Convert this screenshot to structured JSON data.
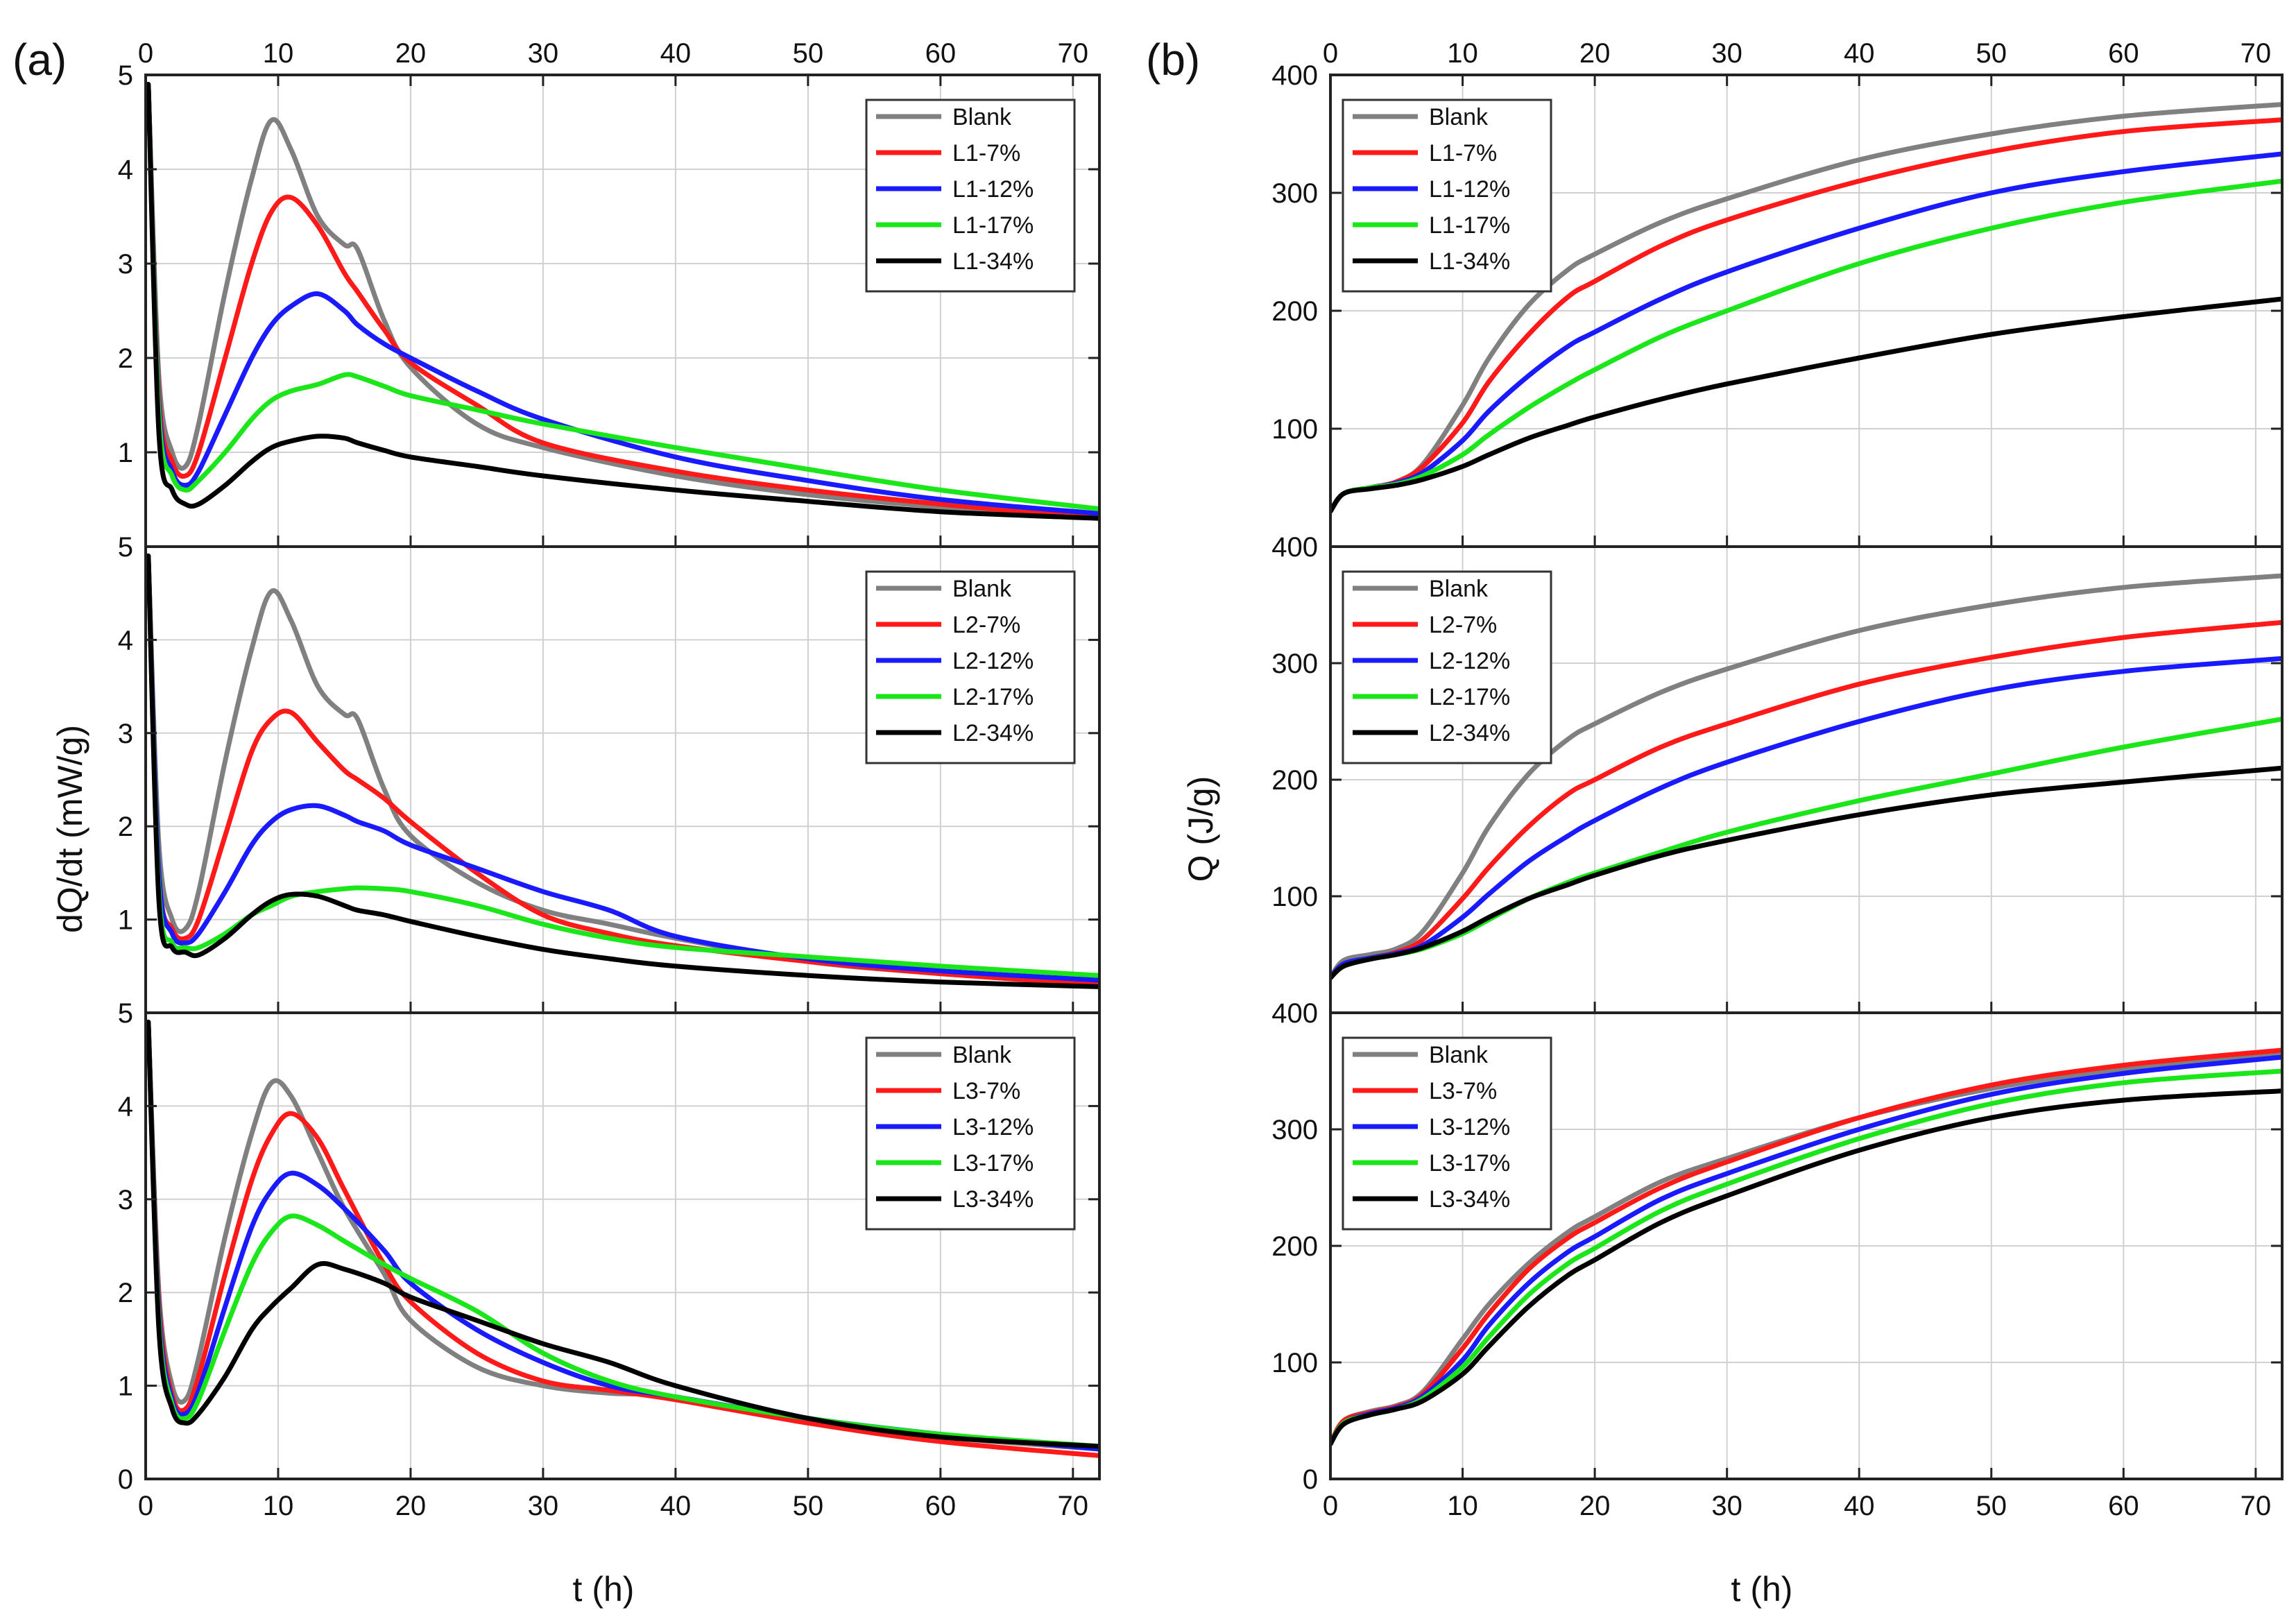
{
  "figure": {
    "panel_a_label": "(a)",
    "panel_b_label": "(b)"
  },
  "colors": {
    "Blank": "#808080",
    "7%": "#ff1a1a",
    "12%": "#1a1aff",
    "17%": "#1ae61a",
    "34%": "#000000"
  },
  "chart_data": [
    {
      "id": "a1",
      "type": "line",
      "title": "",
      "xlabel": "t (h)",
      "ylabel": "dQ/dt (mW/g)",
      "xlim": [
        0,
        72
      ],
      "ylim": [
        0,
        5
      ],
      "grid": true,
      "legend": "top-right",
      "xticks": [
        0,
        10,
        20,
        30,
        40,
        50,
        60,
        70
      ],
      "yticks": [
        1,
        2,
        3,
        4,
        5
      ],
      "x": [
        0.2,
        1,
        2,
        3,
        4,
        6,
        8,
        9.5,
        11,
        13,
        15,
        16,
        18,
        20,
        25,
        30,
        40,
        50,
        60,
        72
      ],
      "series": [
        {
          "name": "Blank",
          "key": "Blank",
          "values": [
            4.9,
            1.8,
            1.0,
            0.85,
            1.3,
            2.7,
            3.9,
            4.52,
            4.2,
            3.5,
            3.2,
            3.15,
            2.4,
            1.9,
            1.3,
            1.05,
            0.75,
            0.55,
            0.42,
            0.3
          ]
        },
        {
          "name": "L1-7%",
          "key": "7%",
          "values": [
            4.9,
            1.6,
            0.9,
            0.75,
            1.0,
            2.0,
            3.0,
            3.55,
            3.7,
            3.4,
            2.9,
            2.7,
            2.3,
            1.95,
            1.5,
            1.1,
            0.8,
            0.6,
            0.45,
            0.3
          ]
        },
        {
          "name": "L1-12%",
          "key": "12%",
          "values": [
            4.9,
            1.5,
            0.8,
            0.65,
            0.8,
            1.4,
            2.0,
            2.35,
            2.55,
            2.68,
            2.5,
            2.35,
            2.15,
            2.0,
            1.65,
            1.35,
            0.95,
            0.7,
            0.5,
            0.35
          ]
        },
        {
          "name": "L1-17%",
          "key": "17%",
          "values": [
            4.9,
            1.4,
            0.75,
            0.6,
            0.7,
            1.0,
            1.35,
            1.55,
            1.65,
            1.72,
            1.82,
            1.8,
            1.7,
            1.6,
            1.45,
            1.3,
            1.05,
            0.82,
            0.6,
            0.4
          ]
        },
        {
          "name": "L1-34%",
          "key": "34%",
          "values": [
            4.9,
            1.2,
            0.6,
            0.45,
            0.45,
            0.65,
            0.9,
            1.05,
            1.12,
            1.17,
            1.15,
            1.1,
            1.02,
            0.95,
            0.85,
            0.75,
            0.6,
            0.48,
            0.37,
            0.3
          ]
        }
      ]
    },
    {
      "id": "a2",
      "type": "line",
      "title": "",
      "xlabel": "t (h)",
      "ylabel": "dQ/dt (mW/g)",
      "xlim": [
        0,
        72
      ],
      "ylim": [
        0,
        5
      ],
      "grid": true,
      "legend": "top-right",
      "xticks": [
        0,
        10,
        20,
        30,
        40,
        50,
        60,
        70
      ],
      "yticks": [
        1,
        2,
        3,
        4,
        5
      ],
      "x": [
        0.2,
        1,
        2,
        3,
        4,
        6,
        8,
        9.5,
        11,
        13,
        15,
        16,
        18,
        20,
        25,
        30,
        35,
        40,
        50,
        60,
        72
      ],
      "series": [
        {
          "name": "Blank",
          "key": "Blank",
          "values": [
            4.9,
            1.8,
            1.0,
            0.9,
            1.3,
            2.7,
            3.9,
            4.52,
            4.2,
            3.5,
            3.2,
            3.15,
            2.4,
            1.9,
            1.4,
            1.1,
            0.95,
            0.8,
            0.55,
            0.42,
            0.3
          ]
        },
        {
          "name": "L2-7%",
          "key": "7%",
          "values": [
            4.9,
            1.5,
            0.9,
            0.8,
            1.0,
            1.9,
            2.8,
            3.15,
            3.22,
            2.9,
            2.6,
            2.5,
            2.3,
            2.05,
            1.5,
            1.05,
            0.85,
            0.72,
            0.55,
            0.42,
            0.3
          ]
        },
        {
          "name": "L2-12%",
          "key": "12%",
          "values": [
            4.9,
            1.5,
            0.85,
            0.75,
            0.85,
            1.3,
            1.8,
            2.05,
            2.18,
            2.22,
            2.12,
            2.05,
            1.95,
            1.8,
            1.55,
            1.3,
            1.1,
            0.82,
            0.58,
            0.45,
            0.35
          ]
        },
        {
          "name": "L2-17%",
          "key": "17%",
          "values": [
            4.9,
            1.3,
            0.75,
            0.7,
            0.7,
            0.85,
            1.05,
            1.15,
            1.25,
            1.3,
            1.33,
            1.34,
            1.33,
            1.3,
            1.15,
            0.95,
            0.8,
            0.7,
            0.6,
            0.5,
            0.4
          ]
        },
        {
          "name": "L2-34%",
          "key": "34%",
          "values": [
            4.9,
            1.2,
            0.7,
            0.65,
            0.62,
            0.8,
            1.05,
            1.2,
            1.27,
            1.25,
            1.15,
            1.1,
            1.05,
            0.98,
            0.82,
            0.68,
            0.58,
            0.5,
            0.4,
            0.33,
            0.28
          ]
        }
      ]
    },
    {
      "id": "a3",
      "type": "line",
      "title": "",
      "xlabel": "t (h)",
      "ylabel": "dQ/dt (mW/g)",
      "xlim": [
        0,
        72
      ],
      "ylim": [
        0,
        5
      ],
      "grid": true,
      "legend": "top-right",
      "xticks": [
        0,
        10,
        20,
        30,
        40,
        50,
        60,
        70
      ],
      "yticks": [
        0,
        1,
        2,
        3,
        4,
        5
      ],
      "x": [
        0.2,
        1,
        2,
        3,
        4,
        6,
        8,
        9.5,
        11,
        13,
        15,
        18,
        20,
        25,
        30,
        35,
        40,
        50,
        60,
        72
      ],
      "series": [
        {
          "name": "Blank",
          "key": "Blank",
          "values": [
            4.9,
            2.0,
            1.0,
            0.85,
            1.3,
            2.6,
            3.7,
            4.25,
            4.1,
            3.5,
            2.9,
            2.2,
            1.7,
            1.2,
            1.0,
            0.92,
            0.88,
            0.62,
            0.45,
            0.32
          ]
        },
        {
          "name": "L3-7%",
          "key": "7%",
          "values": [
            4.9,
            1.9,
            0.9,
            0.75,
            1.1,
            2.2,
            3.2,
            3.7,
            3.92,
            3.65,
            3.1,
            2.3,
            1.9,
            1.35,
            1.05,
            0.95,
            0.85,
            0.6,
            0.4,
            0.25
          ]
        },
        {
          "name": "L3-12%",
          "key": "12%",
          "values": [
            4.9,
            1.8,
            0.85,
            0.7,
            0.95,
            1.85,
            2.7,
            3.1,
            3.28,
            3.15,
            2.9,
            2.45,
            2.1,
            1.6,
            1.25,
            1.0,
            0.88,
            0.65,
            0.48,
            0.32
          ]
        },
        {
          "name": "L3-17%",
          "key": "17%",
          "values": [
            4.9,
            1.7,
            0.8,
            0.65,
            0.85,
            1.6,
            2.3,
            2.65,
            2.82,
            2.72,
            2.55,
            2.3,
            2.15,
            1.8,
            1.35,
            1.05,
            0.88,
            0.65,
            0.48,
            0.35
          ]
        },
        {
          "name": "L3-34%",
          "key": "34%",
          "values": [
            4.9,
            1.6,
            0.75,
            0.6,
            0.7,
            1.1,
            1.6,
            1.85,
            2.05,
            2.3,
            2.25,
            2.1,
            1.95,
            1.7,
            1.45,
            1.25,
            1.0,
            0.65,
            0.45,
            0.35
          ]
        }
      ]
    },
    {
      "id": "b1",
      "type": "line",
      "title": "",
      "xlabel": "t (h)",
      "ylabel": "Q (J/g)",
      "xlim": [
        0,
        72
      ],
      "ylim": [
        0,
        400
      ],
      "grid": true,
      "legend": "top-left",
      "xticks": [
        0,
        10,
        20,
        30,
        40,
        50,
        60,
        70
      ],
      "yticks": [
        100,
        200,
        300,
        400
      ],
      "x": [
        0,
        1,
        3,
        5,
        7,
        10,
        12,
        15,
        18,
        20,
        25,
        30,
        40,
        50,
        60,
        72
      ],
      "series": [
        {
          "name": "Blank",
          "key": "Blank",
          "values": [
            30,
            45,
            50,
            55,
            70,
            120,
            160,
            205,
            235,
            248,
            275,
            295,
            328,
            350,
            365,
            375
          ]
        },
        {
          "name": "L1-7%",
          "key": "7%",
          "values": [
            30,
            45,
            50,
            55,
            68,
            105,
            140,
            180,
            212,
            225,
            255,
            277,
            310,
            335,
            352,
            362
          ]
        },
        {
          "name": "L1-12%",
          "key": "12%",
          "values": [
            30,
            45,
            50,
            54,
            63,
            90,
            115,
            145,
            170,
            182,
            210,
            233,
            270,
            300,
            318,
            333
          ]
        },
        {
          "name": "L1-17%",
          "key": "17%",
          "values": [
            30,
            45,
            50,
            53,
            60,
            78,
            95,
            118,
            138,
            150,
            178,
            200,
            240,
            270,
            292,
            310
          ]
        },
        {
          "name": "L1-34%",
          "key": "34%",
          "values": [
            30,
            45,
            49,
            52,
            57,
            68,
            78,
            92,
            103,
            110,
            125,
            138,
            160,
            180,
            195,
            210
          ]
        }
      ]
    },
    {
      "id": "b2",
      "type": "line",
      "title": "",
      "xlabel": "t (h)",
      "ylabel": "Q (J/g)",
      "xlim": [
        0,
        72
      ],
      "ylim": [
        0,
        400
      ],
      "grid": true,
      "legend": "top-left",
      "xticks": [
        0,
        10,
        20,
        30,
        40,
        50,
        60,
        70
      ],
      "yticks": [
        100,
        200,
        300,
        400
      ],
      "x": [
        0,
        1,
        3,
        5,
        7,
        10,
        12,
        15,
        18,
        20,
        25,
        30,
        40,
        50,
        60,
        72
      ],
      "series": [
        {
          "name": "Blank",
          "key": "Blank",
          "values": [
            30,
            45,
            50,
            55,
            70,
            120,
            160,
            205,
            235,
            248,
            275,
            295,
            328,
            350,
            365,
            375
          ]
        },
        {
          "name": "L2-7%",
          "key": "7%",
          "values": [
            30,
            42,
            47,
            52,
            63,
            98,
            125,
            160,
            188,
            200,
            228,
            248,
            282,
            305,
            322,
            335
          ]
        },
        {
          "name": "L2-12%",
          "key": "12%",
          "values": [
            30,
            42,
            47,
            51,
            58,
            82,
            102,
            130,
            152,
            165,
            193,
            215,
            250,
            277,
            293,
            304
          ]
        },
        {
          "name": "L2-17%",
          "key": "17%",
          "values": [
            30,
            40,
            46,
            50,
            55,
            68,
            80,
            98,
            112,
            120,
            138,
            155,
            182,
            205,
            228,
            252
          ]
        },
        {
          "name": "L2-34%",
          "key": "34%",
          "values": [
            30,
            40,
            46,
            50,
            56,
            70,
            82,
            98,
            110,
            118,
            135,
            148,
            170,
            187,
            198,
            210
          ]
        }
      ]
    },
    {
      "id": "b3",
      "type": "line",
      "title": "",
      "xlabel": "t (h)",
      "ylabel": "Q (J/g)",
      "xlim": [
        0,
        72
      ],
      "ylim": [
        0,
        400
      ],
      "grid": true,
      "legend": "top-left",
      "xticks": [
        0,
        10,
        20,
        30,
        40,
        50,
        60,
        70
      ],
      "yticks": [
        0,
        100,
        200,
        300,
        400
      ],
      "x": [
        0,
        1,
        3,
        5,
        7,
        10,
        12,
        15,
        18,
        20,
        25,
        30,
        40,
        50,
        60,
        72
      ],
      "series": [
        {
          "name": "Blank",
          "key": "Blank",
          "values": [
            30,
            50,
            58,
            63,
            75,
            120,
            150,
            185,
            212,
            225,
            255,
            275,
            310,
            335,
            352,
            365
          ]
        },
        {
          "name": "L3-7%",
          "key": "7%",
          "values": [
            30,
            50,
            57,
            62,
            73,
            112,
            142,
            180,
            207,
            220,
            250,
            272,
            310,
            338,
            355,
            368
          ]
        },
        {
          "name": "L3-12%",
          "key": "12%",
          "values": [
            30,
            48,
            56,
            61,
            71,
            102,
            132,
            168,
            195,
            208,
            240,
            262,
            300,
            330,
            348,
            362
          ]
        },
        {
          "name": "L3-17%",
          "key": "17%",
          "values": [
            30,
            48,
            55,
            60,
            69,
            96,
            122,
            158,
            185,
            198,
            230,
            253,
            292,
            322,
            340,
            350
          ]
        },
        {
          "name": "L3-34%",
          "key": "34%",
          "values": [
            30,
            47,
            55,
            60,
            67,
            90,
            114,
            148,
            175,
            188,
            220,
            243,
            282,
            310,
            325,
            333
          ]
        }
      ]
    }
  ]
}
